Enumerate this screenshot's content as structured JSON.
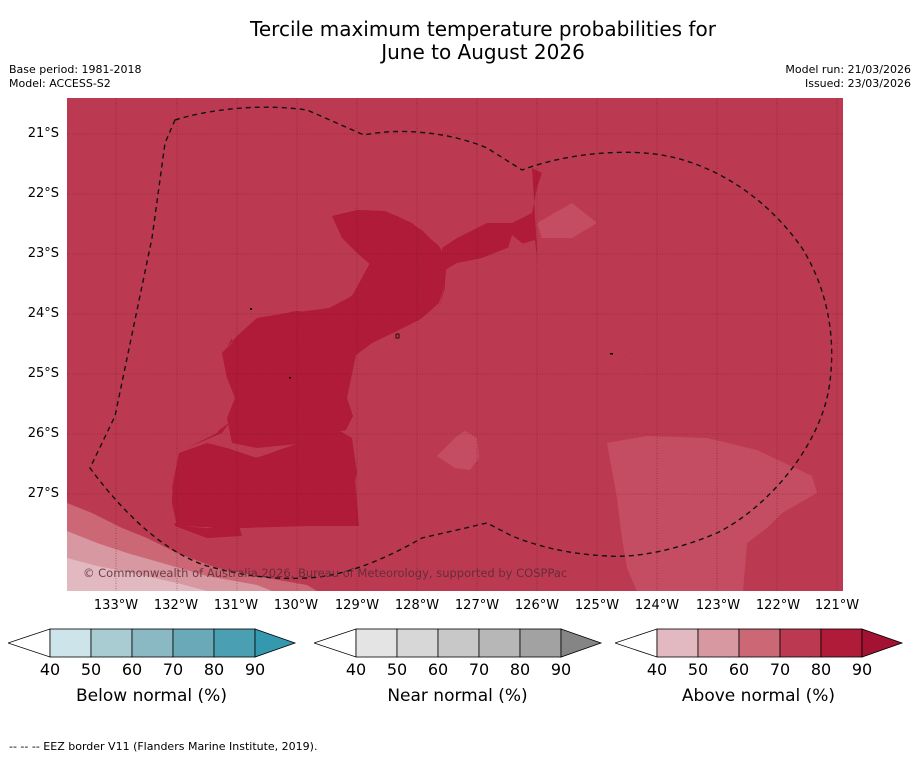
{
  "title_line1": "Tercile maximum temperature probabilities for",
  "title_line2": "June to August 2026",
  "meta": {
    "base_period": "Base period: 1981-2018",
    "model": "Model: ACCESS-S2",
    "model_run": "Model run: 21/03/2026",
    "issued": "Issued: 23/03/2026"
  },
  "map": {
    "lat_labels": [
      "21°S",
      "22°S",
      "23°S",
      "24°S",
      "25°S",
      "26°S",
      "27°S"
    ],
    "lon_labels": [
      "133°W",
      "132°W",
      "131°W",
      "130°W",
      "129°W",
      "128°W",
      "127°W",
      "126°W",
      "125°W",
      "124°W",
      "123°W",
      "122°W",
      "121°W"
    ],
    "copyright": "© Commonwealth of Australia 2026, Bureau of Meteorology, supported by COSPPac",
    "colors": {
      "above_90": "#af1b38",
      "above_80": "#bb3a52",
      "above_70": "#cc6876",
      "above_60": "#d898a2",
      "above_50": "#e2b9c0"
    }
  },
  "legends": [
    {
      "title": "Below normal (%)",
      "ticks": [
        "40",
        "50",
        "60",
        "70",
        "80",
        "90"
      ],
      "colors": [
        "#ffffff",
        "#cde4ea",
        "#a9ccd3",
        "#8ab9c3",
        "#6aa9b7",
        "#4aa0b2",
        "#3498ae"
      ]
    },
    {
      "title": "Near normal (%)",
      "ticks": [
        "40",
        "50",
        "60",
        "70",
        "80",
        "90"
      ],
      "colors": [
        "#ffffff",
        "#e4e4e4",
        "#d7d7d7",
        "#c8c8c8",
        "#b7b7b7",
        "#a2a2a2",
        "#858585"
      ]
    },
    {
      "title": "Above normal (%)",
      "ticks": [
        "40",
        "50",
        "60",
        "70",
        "80",
        "90"
      ],
      "colors": [
        "#ffffff",
        "#e2b9c0",
        "#d898a2",
        "#cc6876",
        "#bb3a52",
        "#af1b38",
        "#a31232"
      ]
    }
  ],
  "footnote": "--  --  -- EEZ border V11 (Flanders Marine Institute, 2019)."
}
